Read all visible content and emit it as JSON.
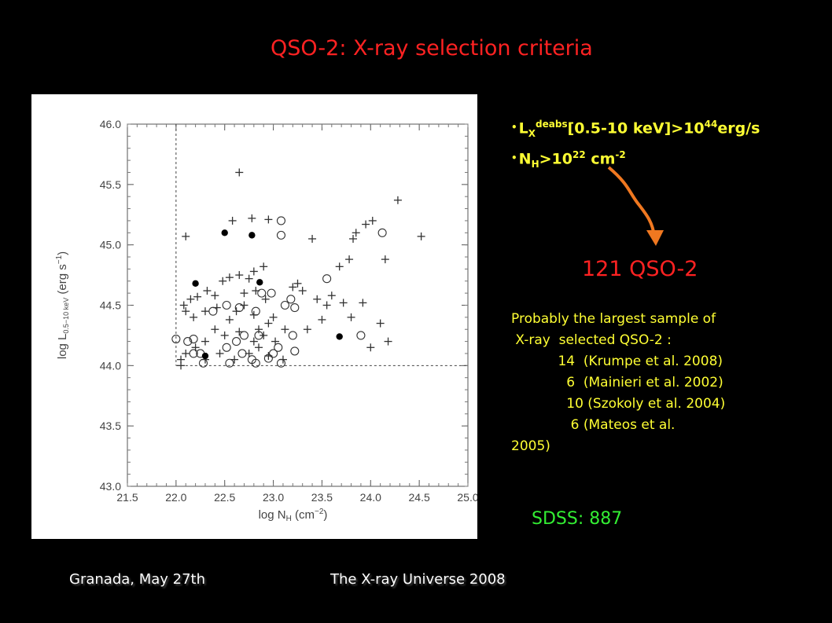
{
  "slide": {
    "title": "QSO-2: X-ray selection criteria",
    "criteria": [
      {
        "bullet": "•",
        "main": "L",
        "sub": "X",
        "sup": "deabs",
        "rest": "[0.5-10 keV]>10",
        "exp": "44",
        "tail": "erg/s"
      },
      {
        "bullet": "•",
        "main": "N",
        "sub": "H",
        "rest": ">10",
        "exp": "22",
        "tail": " cm",
        "exp2": "-2"
      }
    ],
    "count_label": "121  QSO-2",
    "notes": "Probably the largest sample of\n X-ray  selected QSO-2 :\n           14  (Krumpe et al. 2008)\n             6  (Mainieri et al. 2002)\n             10 (Szokoly et al. 2004)\n              6 (Mateos et al.\n2005)",
    "sdss": "SDSS: 887",
    "footer_left": "Granada, May 27th",
    "footer_mid": "The X-ray Universe 2008",
    "colors": {
      "title_red": "#ff2222",
      "bullet_yellow": "#ffff33",
      "sdss_green": "#33ee33",
      "arrow_orange": "#f07820"
    },
    "arrow_icon": "curved-arrow-down"
  },
  "chart_data": {
    "type": "scatter",
    "xlabel": "log N_H (cm^-2)",
    "ylabel": "log L_0.5-10 keV (erg s^-1)",
    "xlim": [
      21.5,
      25.0
    ],
    "ylim": [
      43.0,
      46.0
    ],
    "xticks": [
      "21.5",
      "22.0",
      "22.5",
      "23.0",
      "23.5",
      "24.0",
      "24.5",
      "25.0"
    ],
    "yticks": [
      "43.0",
      "43.5",
      "44.0",
      "44.5",
      "45.0",
      "45.5",
      "46.0"
    ],
    "selection_lines": {
      "x_min": 22.0,
      "y_min": 44.0
    },
    "series": [
      {
        "marker": "plus",
        "points": [
          [
            22.65,
            45.6
          ],
          [
            22.78,
            45.22
          ],
          [
            22.95,
            45.21
          ],
          [
            22.58,
            45.2
          ],
          [
            22.1,
            45.07
          ],
          [
            23.4,
            45.05
          ],
          [
            24.28,
            45.37
          ],
          [
            24.02,
            45.2
          ],
          [
            23.95,
            45.17
          ],
          [
            23.82,
            45.05
          ],
          [
            23.85,
            45.1
          ],
          [
            24.15,
            44.88
          ],
          [
            24.52,
            45.07
          ],
          [
            23.78,
            44.88
          ],
          [
            23.68,
            44.82
          ],
          [
            22.55,
            44.73
          ],
          [
            22.65,
            44.75
          ],
          [
            22.75,
            44.72
          ],
          [
            22.8,
            44.78
          ],
          [
            22.9,
            44.82
          ],
          [
            22.7,
            44.6
          ],
          [
            22.82,
            44.62
          ],
          [
            22.92,
            44.55
          ],
          [
            22.48,
            44.7
          ],
          [
            22.4,
            44.58
          ],
          [
            22.32,
            44.62
          ],
          [
            22.22,
            44.57
          ],
          [
            22.15,
            44.55
          ],
          [
            22.1,
            44.45
          ],
          [
            22.08,
            44.5
          ],
          [
            22.18,
            44.4
          ],
          [
            22.3,
            44.45
          ],
          [
            22.42,
            44.48
          ],
          [
            22.55,
            44.38
          ],
          [
            22.62,
            44.45
          ],
          [
            22.7,
            44.5
          ],
          [
            22.8,
            44.42
          ],
          [
            22.95,
            44.35
          ],
          [
            23.0,
            44.4
          ],
          [
            22.85,
            44.3
          ],
          [
            22.65,
            44.28
          ],
          [
            22.5,
            44.25
          ],
          [
            22.4,
            44.3
          ],
          [
            22.3,
            44.2
          ],
          [
            22.2,
            44.15
          ],
          [
            22.1,
            44.1
          ],
          [
            22.05,
            44.05
          ],
          [
            22.05,
            44.0
          ],
          [
            22.3,
            44.05
          ],
          [
            22.45,
            44.1
          ],
          [
            22.6,
            44.05
          ],
          [
            22.75,
            44.1
          ],
          [
            22.85,
            44.15
          ],
          [
            22.95,
            44.08
          ],
          [
            23.1,
            44.05
          ],
          [
            22.9,
            44.25
          ],
          [
            22.8,
            44.2
          ],
          [
            23.02,
            44.2
          ],
          [
            23.12,
            44.3
          ],
          [
            23.35,
            44.3
          ],
          [
            23.5,
            44.38
          ],
          [
            23.45,
            44.55
          ],
          [
            23.6,
            44.58
          ],
          [
            23.3,
            44.62
          ],
          [
            23.2,
            44.65
          ],
          [
            23.25,
            44.68
          ],
          [
            23.55,
            44.5
          ],
          [
            23.72,
            44.52
          ],
          [
            23.8,
            44.4
          ],
          [
            23.92,
            44.52
          ],
          [
            24.1,
            44.35
          ],
          [
            24.0,
            44.15
          ],
          [
            24.18,
            44.2
          ]
        ]
      },
      {
        "marker": "open-circle",
        "points": [
          [
            23.08,
            45.2
          ],
          [
            23.08,
            45.08
          ],
          [
            24.12,
            45.1
          ],
          [
            22.98,
            44.6
          ],
          [
            22.88,
            44.6
          ],
          [
            23.18,
            44.55
          ],
          [
            22.52,
            44.5
          ],
          [
            22.65,
            44.48
          ],
          [
            22.38,
            44.45
          ],
          [
            23.22,
            44.48
          ],
          [
            22.82,
            44.45
          ],
          [
            23.12,
            44.5
          ],
          [
            23.55,
            44.72
          ],
          [
            23.9,
            44.25
          ],
          [
            22.0,
            44.22
          ],
          [
            22.18,
            44.22
          ],
          [
            22.62,
            44.2
          ],
          [
            22.7,
            44.25
          ],
          [
            22.85,
            44.25
          ],
          [
            23.2,
            44.25
          ],
          [
            23.22,
            44.12
          ],
          [
            23.05,
            44.15
          ],
          [
            22.52,
            44.15
          ],
          [
            22.68,
            44.1
          ],
          [
            22.78,
            44.05
          ],
          [
            22.95,
            44.06
          ],
          [
            23.08,
            44.02
          ],
          [
            22.82,
            44.02
          ],
          [
            22.55,
            44.02
          ],
          [
            22.18,
            44.1
          ],
          [
            22.28,
            44.02
          ],
          [
            22.12,
            44.2
          ],
          [
            22.25,
            44.1
          ],
          [
            23.0,
            44.1
          ]
        ]
      },
      {
        "marker": "filled-circle",
        "points": [
          [
            22.5,
            45.1
          ],
          [
            22.78,
            45.08
          ],
          [
            22.2,
            44.68
          ],
          [
            22.86,
            44.69
          ],
          [
            23.68,
            44.24
          ],
          [
            22.3,
            44.08
          ]
        ]
      }
    ]
  }
}
